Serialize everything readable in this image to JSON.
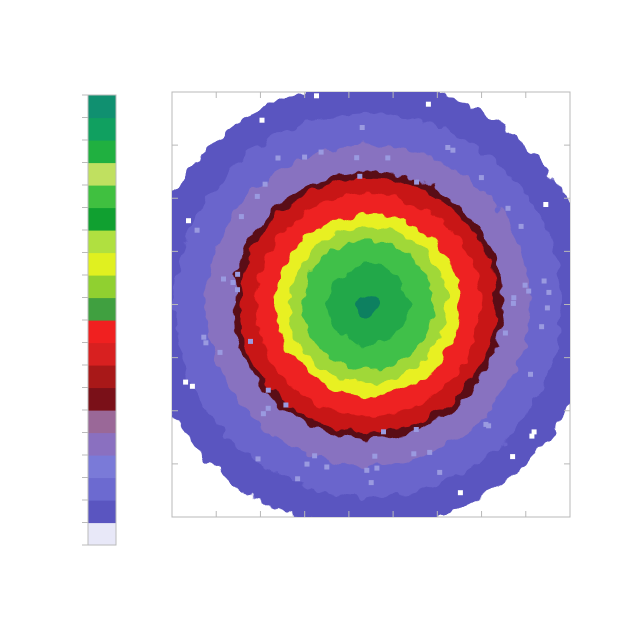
{
  "chart_data": {
    "type": "heatmap",
    "title": "",
    "subtitle": "",
    "xlabel": "",
    "ylabel": "",
    "footer": [
      "",
      ""
    ],
    "colorbar": {
      "colors": [
        "#e8e8f8",
        "#5a55c0",
        "#6c6ad0",
        "#7a7ad8",
        "#8a70c0",
        "#9a6898",
        "#7a1018",
        "#a81818",
        "#d82020",
        "#f02020",
        "#40a040",
        "#90d030",
        "#e0f020",
        "#b0e040",
        "#10a030",
        "#40c040",
        "#c0e060",
        "#20b040",
        "#10a060",
        "#109070"
      ]
    },
    "heatmap": {
      "shape": "radial",
      "center": [
        0,
        0
      ],
      "levels": [
        {
          "r": 1.0,
          "color": "#5a55c0"
        },
        {
          "r": 0.86,
          "color": "#6a65cc"
        },
        {
          "r": 0.72,
          "color": "#8872c0"
        },
        {
          "r": 0.6,
          "color": "#5a0a18"
        },
        {
          "r": 0.57,
          "color": "#c81818"
        },
        {
          "r": 0.5,
          "color": "#ee2020"
        },
        {
          "r": 0.41,
          "color": "#e8f020"
        },
        {
          "r": 0.35,
          "color": "#a0d838"
        },
        {
          "r": 0.29,
          "color": "#40c048"
        },
        {
          "r": 0.18,
          "color": "#20a848"
        },
        {
          "r": 0.05,
          "color": "#108060"
        }
      ]
    }
  }
}
